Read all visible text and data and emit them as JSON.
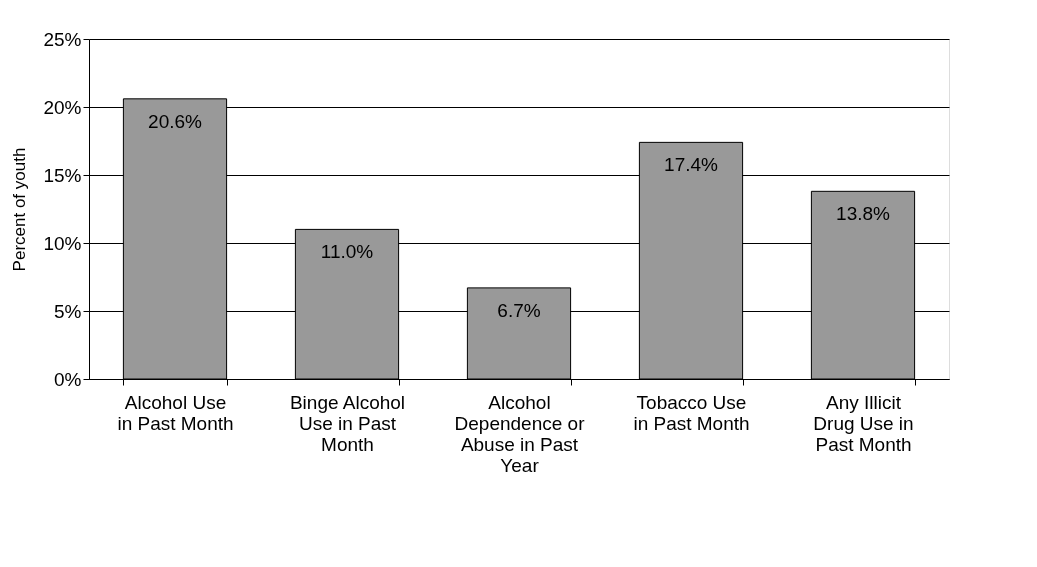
{
  "chart_data": {
    "type": "bar",
    "ylabel": "Percent of youth",
    "categories": [
      "Alcohol Use in Past Month",
      "Binge Alcohol Use in Past Month",
      "Alcohol Dependence or Abuse in Past Year",
      "Tobacco Use in Past Month",
      "Any Illicit Drug Use in Past Month"
    ],
    "values": [
      20.6,
      11.0,
      6.7,
      17.4,
      13.8
    ],
    "value_labels": [
      "20.6%",
      "11.0%",
      "6.7%",
      "17.4%",
      "13.8%"
    ],
    "color": "#999999",
    "ylim": [
      0,
      25
    ],
    "yticks": [
      {
        "value": 0,
        "label": "0%"
      },
      {
        "value": 5,
        "label": "5%"
      },
      {
        "value": 10,
        "label": "10%"
      },
      {
        "value": 15,
        "label": "15%"
      },
      {
        "value": 20,
        "label": "20%"
      },
      {
        "value": 25,
        "label": "25%"
      }
    ],
    "grid": "y"
  }
}
